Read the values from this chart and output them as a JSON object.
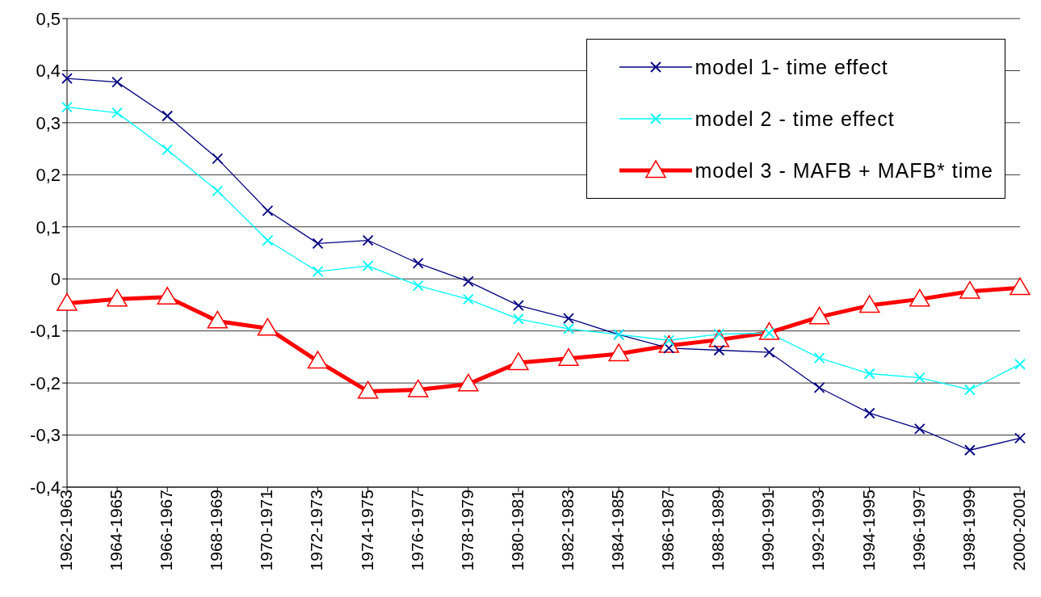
{
  "chart_data": {
    "type": "line",
    "categories": [
      "1962-1963",
      "1964-1965",
      "1966-1967",
      "1968-1969",
      "1970-1971",
      "1972-1973",
      "1974-1975",
      "1976-1977",
      "1978-1979",
      "1980-1981",
      "1982-1983",
      "1984-1985",
      "1986-1987",
      "1988-1989",
      "1990-1991",
      "1992-1993",
      "1994-1995",
      "1996-1997",
      "1998-1999",
      "2000-2001"
    ],
    "series": [
      {
        "name": "model 1- time effect",
        "color": "#000080",
        "marker": "cross",
        "values": [
          0.385,
          0.378,
          0.313,
          0.231,
          0.131,
          0.068,
          0.074,
          0.03,
          -0.005,
          -0.051,
          -0.076,
          -0.107,
          -0.133,
          -0.137,
          -0.141,
          -0.209,
          -0.258,
          -0.288,
          -0.329,
          -0.306
        ]
      },
      {
        "name": "model 2 - time effect",
        "color": "#00ffff",
        "marker": "cross",
        "values": [
          0.33,
          0.319,
          0.248,
          0.169,
          0.074,
          0.014,
          0.025,
          -0.013,
          -0.039,
          -0.077,
          -0.096,
          -0.107,
          -0.118,
          -0.106,
          -0.104,
          -0.152,
          -0.182,
          -0.19,
          -0.213,
          -0.164
        ]
      },
      {
        "name": "model 3 - MAFB + MAFB* time",
        "color": "#ff0000",
        "marker": "triangle",
        "values": [
          -0.047,
          -0.039,
          -0.035,
          -0.081,
          -0.095,
          -0.158,
          -0.216,
          -0.213,
          -0.202,
          -0.161,
          -0.153,
          -0.144,
          -0.128,
          -0.117,
          -0.103,
          -0.073,
          -0.051,
          -0.039,
          -0.024,
          -0.017
        ]
      }
    ],
    "ylim": [
      -0.4,
      0.5
    ],
    "yticks": [
      {
        "value": -0.4,
        "label": "-0,4"
      },
      {
        "value": -0.3,
        "label": "-0,3"
      },
      {
        "value": -0.2,
        "label": "-0,2"
      },
      {
        "value": -0.1,
        "label": "-0,1"
      },
      {
        "value": 0,
        "label": "0"
      },
      {
        "value": 0.1,
        "label": "0,1"
      },
      {
        "value": 0.2,
        "label": "0,2"
      },
      {
        "value": 0.3,
        "label": "0,3"
      },
      {
        "value": 0.4,
        "label": "0,4"
      },
      {
        "value": 0.5,
        "label": "0,5"
      }
    ],
    "grid": "y",
    "legend": "top right",
    "line_style": "solid"
  }
}
